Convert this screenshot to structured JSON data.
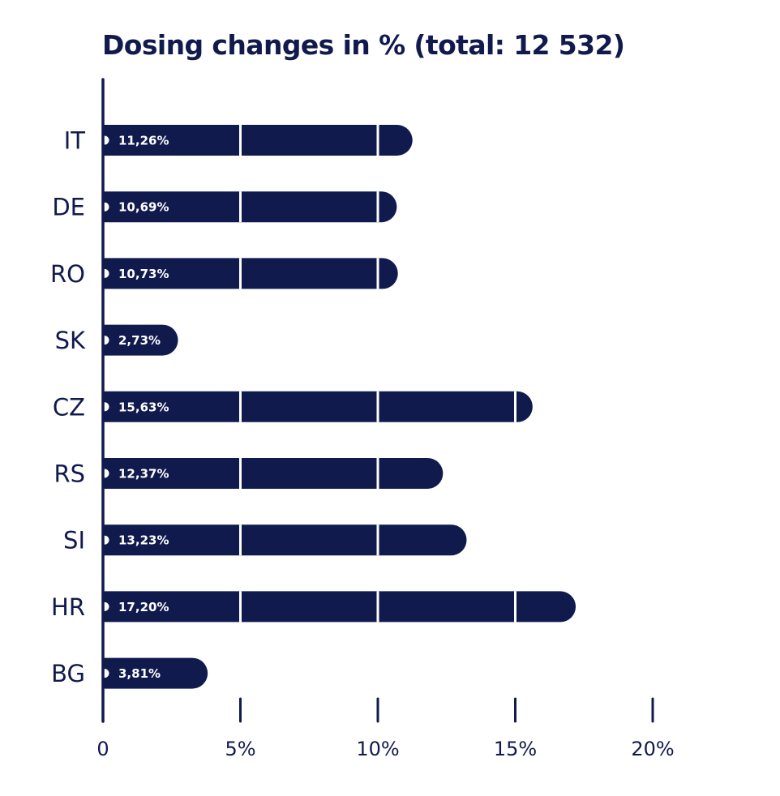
{
  "colors": {
    "bar": "#111a4d",
    "axis": "#111a4d",
    "background": "#ffffff",
    "label_inside": "#ffffff"
  },
  "chart_data": {
    "type": "bar",
    "orientation": "horizontal",
    "title": "Dosing changes in % (total: 12 532)",
    "categories": [
      "IT",
      "DE",
      "RO",
      "SK",
      "CZ",
      "RS",
      "SI",
      "HR",
      "BG"
    ],
    "values": [
      11.26,
      10.69,
      10.73,
      2.73,
      15.63,
      12.37,
      13.23,
      17.2,
      3.81
    ],
    "value_labels": [
      "11,26%",
      "10,69%",
      "10,73%",
      "2,73%",
      "15,63%",
      "12,37%",
      "13,23%",
      "17,20%",
      "3,81%"
    ],
    "xticks": [
      0,
      5,
      10,
      15,
      20
    ],
    "xtick_labels": [
      "0",
      "5%",
      "10%",
      "15%",
      "20%"
    ],
    "xlim": [
      0,
      20
    ],
    "grid": false,
    "legend": "none"
  }
}
